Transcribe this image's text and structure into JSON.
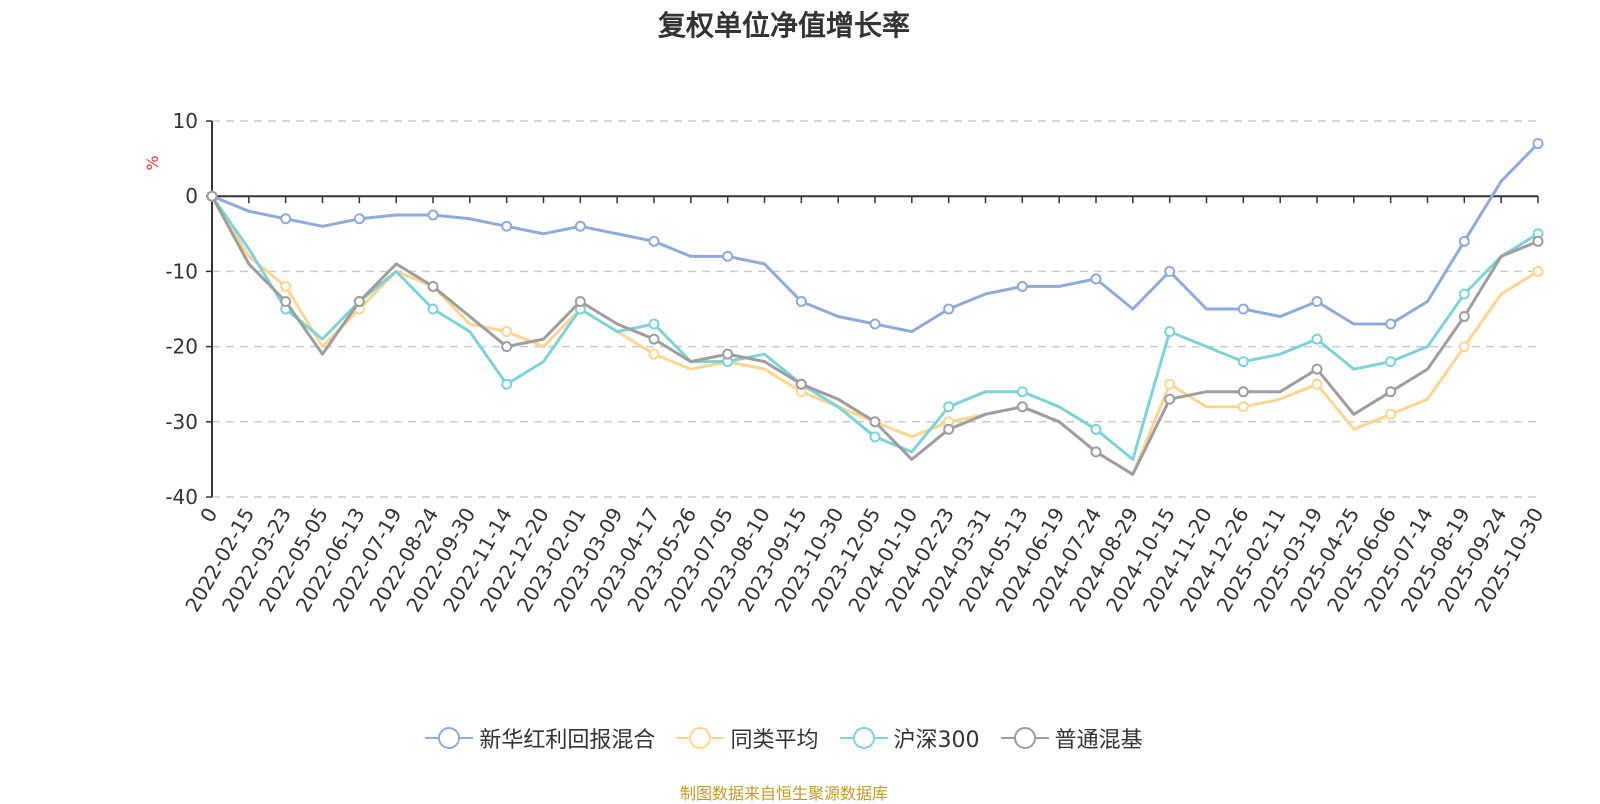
{
  "chart_data": {
    "type": "line",
    "title": "复权单位净值增长率",
    "ylabel": "%",
    "xlabel": "",
    "ylim": [
      -40,
      10
    ],
    "yticks": [
      10,
      0,
      -10,
      -20,
      -30,
      -40
    ],
    "grid": true,
    "legend_position": "bottom-center",
    "x_tick_labels": [
      "0",
      "2022-02-15",
      "2022-03-23",
      "2022-05-05",
      "2022-06-13",
      "2022-07-19",
      "2022-08-24",
      "2022-09-30",
      "2022-11-14",
      "2022-12-20",
      "2023-02-01",
      "2023-03-09",
      "2023-04-17",
      "2023-05-26",
      "2023-07-05",
      "2023-08-10",
      "2023-09-15",
      "2023-10-30",
      "2023-12-05",
      "2024-01-10",
      "2024-02-23",
      "2024-03-31",
      "2024-05-13",
      "2024-06-19",
      "2024-07-24",
      "2024-08-29",
      "2024-10-15",
      "2024-11-20",
      "2024-12-26",
      "2025-02-11",
      "2025-03-19",
      "2025-04-25",
      "2025-06-06",
      "2025-07-14",
      "2025-08-19",
      "2025-09-24",
      "2025-10-30"
    ],
    "series": [
      {
        "name": "新华红利回报混合",
        "color": "#8fabd9",
        "values": [
          0,
          -2,
          -3,
          -4,
          -3,
          -2.5,
          -2.5,
          -3,
          -4,
          -5,
          -4,
          -5,
          -6,
          -8,
          -8,
          -9,
          -14,
          -16,
          -17,
          -18,
          -15,
          -13,
          -12,
          -12,
          -11,
          -15,
          -10,
          -15,
          -15,
          -16,
          -14,
          -17,
          -17,
          -14,
          -6,
          2,
          7
        ]
      },
      {
        "name": "同类平均",
        "color": "#ffd591",
        "values": [
          0,
          -8,
          -12,
          -20,
          -15,
          -10,
          -12,
          -17,
          -18,
          -20,
          -15,
          -18,
          -21,
          -23,
          -22,
          -23,
          -26,
          -28,
          -30,
          -32,
          -30,
          -29,
          -28,
          -30,
          -34,
          -37,
          -25,
          -28,
          -28,
          -27,
          -25,
          -31,
          -29,
          -27,
          -20,
          -13,
          -10
        ]
      },
      {
        "name": "沪深300",
        "color": "#7dd3d8",
        "values": [
          0,
          -7,
          -15,
          -19,
          -14,
          -10,
          -15,
          -18,
          -25,
          -22,
          -15,
          -18,
          -17,
          -22,
          -22,
          -21,
          -25,
          -28,
          -32,
          -34,
          -28,
          -26,
          -26,
          -28,
          -31,
          -35,
          -18,
          -20,
          -22,
          -21,
          -19,
          -23,
          -22,
          -20,
          -13,
          -8,
          -5
        ]
      },
      {
        "name": "普通混基",
        "color": "#9e9e9e",
        "values": [
          0,
          -9,
          -14,
          -21,
          -14,
          -9,
          -12,
          -16,
          -20,
          -19,
          -14,
          -17,
          -19,
          -22,
          -21,
          -22,
          -25,
          -27,
          -30,
          -35,
          -31,
          -29,
          -28,
          -30,
          -34,
          -37,
          -27,
          -26,
          -26,
          -26,
          -23,
          -29,
          -26,
          -23,
          -16,
          -8,
          -6
        ]
      }
    ]
  },
  "legend": {
    "items": [
      "新华红利回报混合",
      "同类平均",
      "沪深300",
      "普通混基"
    ]
  },
  "source_note": "制图数据来自恒生聚源数据库"
}
